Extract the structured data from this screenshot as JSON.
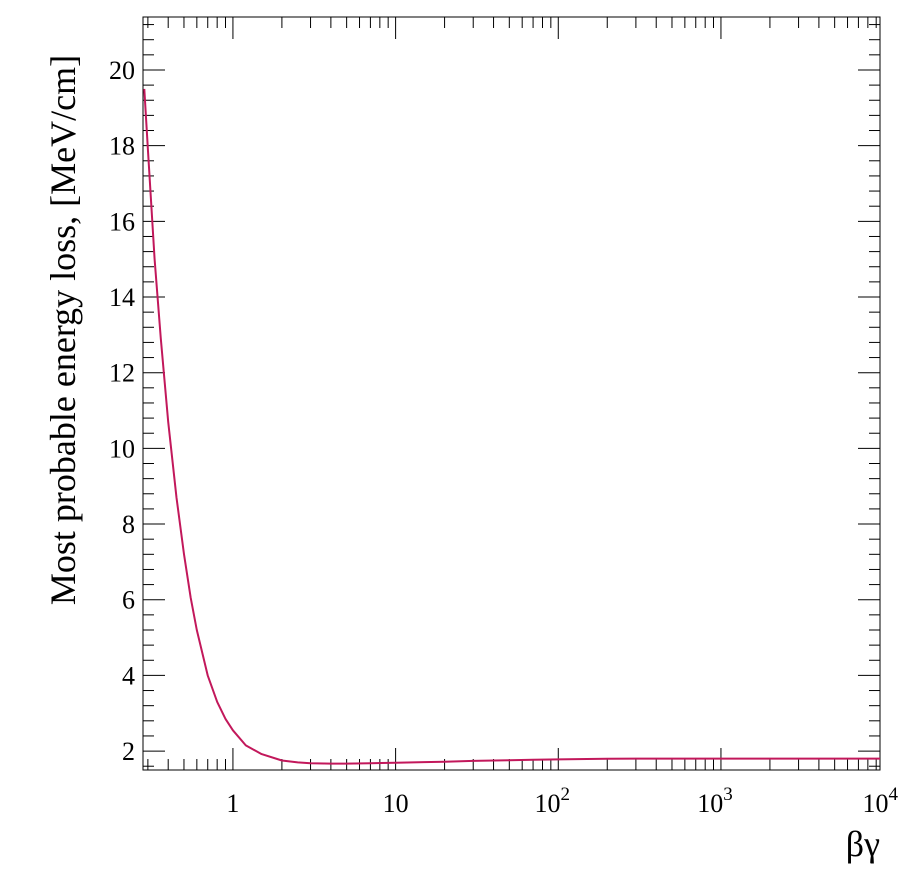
{
  "chart_data": {
    "type": "line",
    "title": "",
    "xlabel": "βγ",
    "ylabel": "Most probable energy loss, [MeV/cm]",
    "x_scale": "log",
    "xlim": [
      0.28,
      9500
    ],
    "ylim": [
      1.5,
      21.4
    ],
    "grid": false,
    "line_color": "#c2185b",
    "x_ticks": [
      {
        "value": 1,
        "base": "1",
        "exp": ""
      },
      {
        "value": 10,
        "base": "10",
        "exp": ""
      },
      {
        "value": 100,
        "base": "10",
        "exp": "2"
      },
      {
        "value": 1000,
        "base": "10",
        "exp": "3"
      },
      {
        "value": 10000,
        "base": "10",
        "exp": "4"
      }
    ],
    "y_ticks": [
      {
        "value": 2,
        "label": "2"
      },
      {
        "value": 4,
        "label": "4"
      },
      {
        "value": 6,
        "label": "6"
      },
      {
        "value": 8,
        "label": "8"
      },
      {
        "value": 10,
        "label": "10"
      },
      {
        "value": 12,
        "label": "12"
      },
      {
        "value": 14,
        "label": "14"
      },
      {
        "value": 16,
        "label": "16"
      },
      {
        "value": 18,
        "label": "18"
      },
      {
        "value": 20,
        "label": "20"
      }
    ],
    "series": [
      {
        "x": [
          0.285,
          0.3,
          0.33,
          0.36,
          0.4,
          0.45,
          0.5,
          0.55,
          0.6,
          0.7,
          0.8,
          0.9,
          1.0,
          1.2,
          1.5,
          2.0,
          2.5,
          3.0,
          4.0,
          5.0,
          7.0,
          10,
          15,
          20,
          30,
          50,
          70,
          100,
          150,
          200,
          300,
          500,
          1000,
          2000,
          5000,
          9500
        ],
        "y": [
          19.5,
          17.9,
          15.0,
          12.9,
          10.7,
          8.7,
          7.2,
          6.05,
          5.2,
          4.0,
          3.3,
          2.85,
          2.55,
          2.15,
          1.92,
          1.75,
          1.7,
          1.68,
          1.67,
          1.67,
          1.68,
          1.69,
          1.71,
          1.72,
          1.74,
          1.76,
          1.77,
          1.78,
          1.79,
          1.795,
          1.8,
          1.8,
          1.8,
          1.8,
          1.8,
          1.8
        ]
      }
    ]
  }
}
